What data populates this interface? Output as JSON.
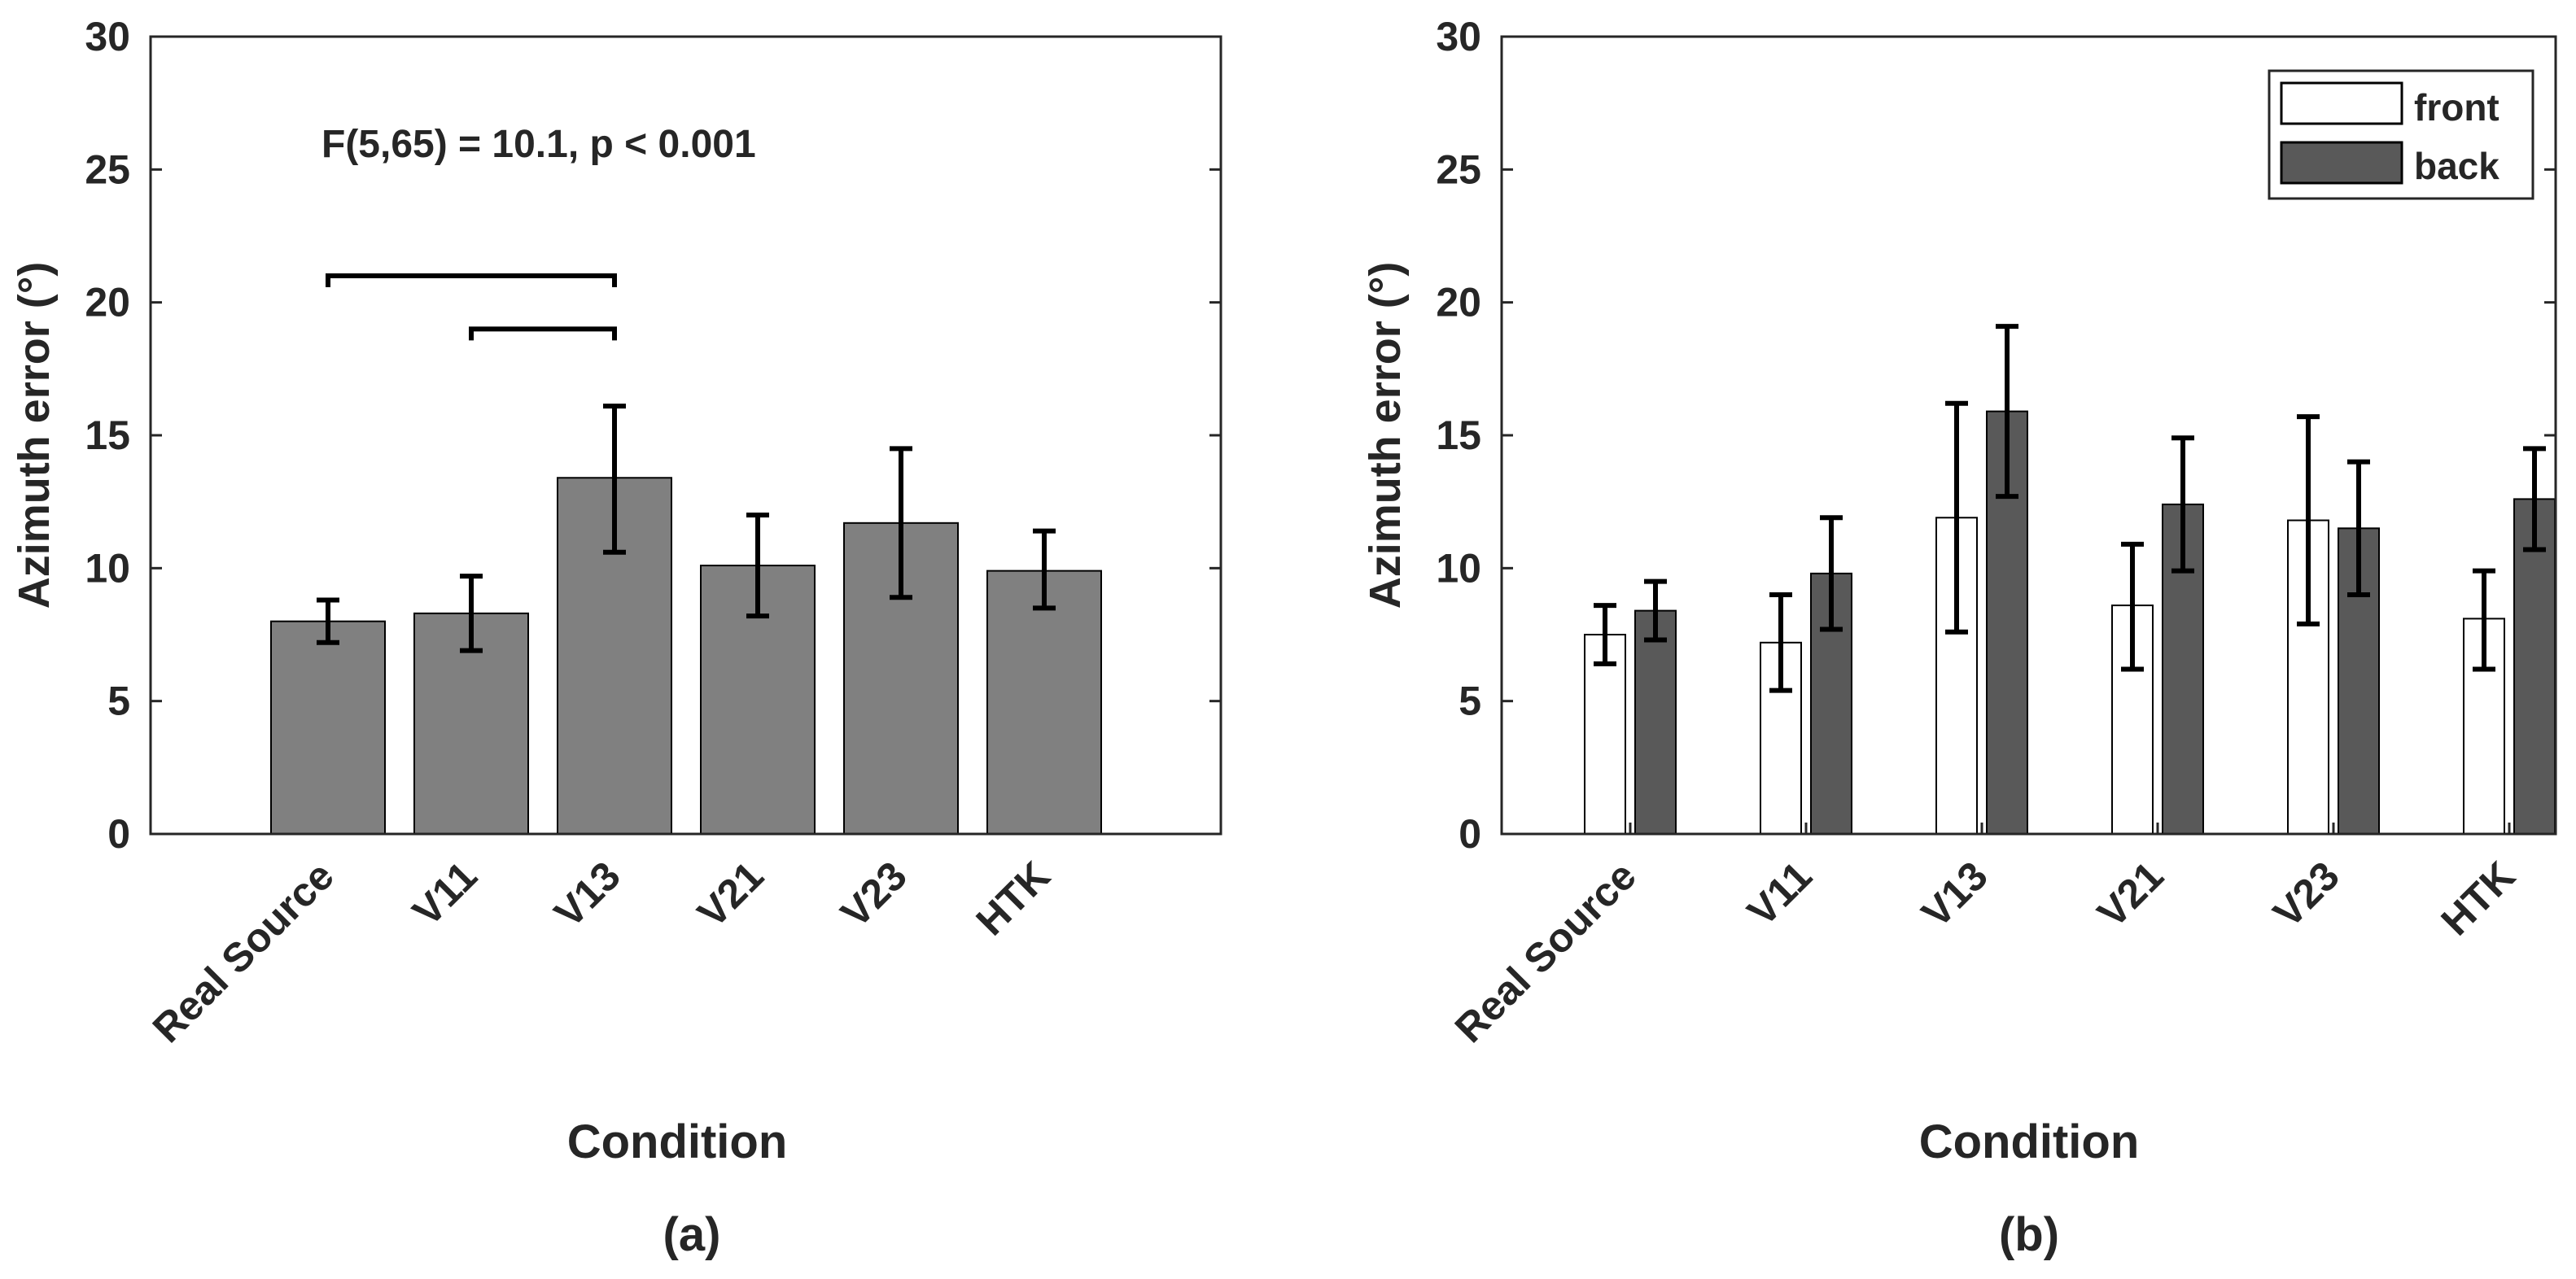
{
  "chart_data": [
    {
      "type": "bar",
      "panel_label": "(a)",
      "categories": [
        "Real Source",
        "V11",
        "V13",
        "V21",
        "V23",
        "HTK"
      ],
      "values": [
        8.0,
        8.3,
        13.4,
        10.1,
        11.7,
        9.9
      ],
      "error_low": [
        7.2,
        6.9,
        10.6,
        8.2,
        8.9,
        8.5
      ],
      "error_high": [
        8.8,
        9.7,
        16.1,
        12.0,
        14.5,
        11.4
      ],
      "ylim": [
        0,
        30
      ],
      "yticks": [
        "0",
        "5",
        "10",
        "15",
        "20",
        "25",
        "30"
      ],
      "ylabel": "Azimuth error (°)",
      "xlabel": "Condition",
      "annotation": "F(5,65) = 10.1, p < 0.001",
      "significance_brackets": [
        {
          "from": "Real Source",
          "to": "V13",
          "y": 21
        },
        {
          "from": "V11",
          "to": "V13",
          "y": 19
        }
      ],
      "colors": {
        "bar": "#808080"
      }
    },
    {
      "type": "bar",
      "panel_label": "(b)",
      "categories": [
        "Real Source",
        "V11",
        "V13",
        "V21",
        "V23",
        "HTK"
      ],
      "series": [
        {
          "name": "front",
          "color": "#ffffff",
          "values": [
            7.5,
            7.2,
            11.9,
            8.6,
            11.8,
            8.1
          ],
          "error_low": [
            6.4,
            5.4,
            7.6,
            6.2,
            7.9,
            6.2
          ],
          "error_high": [
            8.6,
            9.0,
            16.2,
            10.9,
            15.7,
            9.9
          ]
        },
        {
          "name": "back",
          "color": "#595959",
          "values": [
            8.4,
            9.8,
            15.9,
            12.4,
            11.5,
            12.6
          ],
          "error_low": [
            7.3,
            7.7,
            12.7,
            9.9,
            9.0,
            10.7
          ],
          "error_high": [
            9.5,
            11.9,
            19.1,
            14.9,
            14.0,
            14.5
          ]
        }
      ],
      "ylim": [
        0,
        30
      ],
      "yticks": [
        "0",
        "5",
        "10",
        "15",
        "20",
        "25",
        "30"
      ],
      "ylabel": "Azimuth error (°)",
      "xlabel": "Condition",
      "legend_position": "top-right"
    }
  ]
}
